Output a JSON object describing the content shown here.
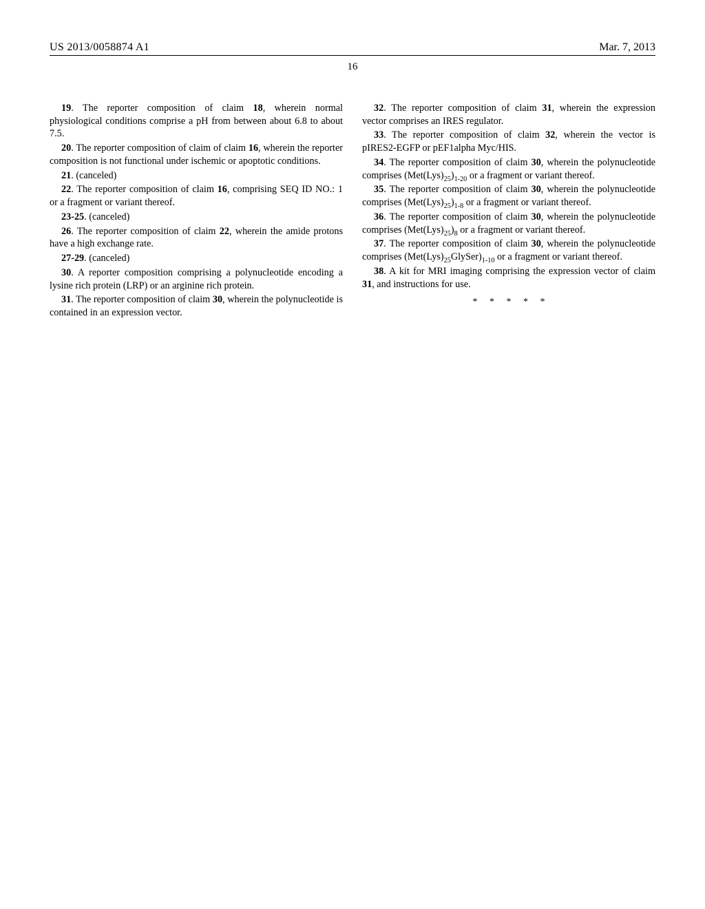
{
  "header": {
    "publication_number": "US 2013/0058874 A1",
    "publication_date": "Mar. 7, 2013",
    "page_number": "16"
  },
  "claims": {
    "c19": {
      "number": "19",
      "ref": "18",
      "text_a": ". The reporter composition of claim ",
      "text_b": ", wherein normal physiological conditions comprise a pH from between about 6.8 to about 7.5."
    },
    "c20": {
      "number": "20",
      "ref": "16",
      "text_a": ". The reporter composition of claim of claim ",
      "text_b": ", wherein the reporter composition is not functional under ischemic or apoptotic conditions."
    },
    "c21": {
      "number": "21",
      "text": ". (canceled)"
    },
    "c22": {
      "number": "22",
      "ref": "16",
      "text_a": ". The reporter composition of claim ",
      "text_b": ", comprising SEQ ID NO.: 1 or a fragment or variant thereof."
    },
    "c23_25": {
      "number": "23-25",
      "text": ". (canceled)"
    },
    "c26": {
      "number": "26",
      "ref": "22",
      "text_a": ". The reporter composition of claim ",
      "text_b": ", wherein the amide protons have a high exchange rate."
    },
    "c27_29": {
      "number": "27-29",
      "text": ". (canceled)"
    },
    "c30": {
      "number": "30",
      "text": ". A reporter composition comprising a polynucleotide encoding a lysine rich protein (LRP) or an arginine rich protein."
    },
    "c31": {
      "number": "31",
      "ref": "30",
      "text_a": ". The reporter composition of claim ",
      "text_b": ", wherein the polynucleotide is contained in an expression vector."
    },
    "c32": {
      "number": "32",
      "ref": "31",
      "text_a": ". The reporter composition of claim ",
      "text_b": ", wherein the expression vector comprises an IRES regulator."
    },
    "c33": {
      "number": "33",
      "ref": "32",
      "text_a": ". The reporter composition of claim ",
      "text_b": ", wherein the vector is pIRES2-EGFP or pEF1alpha Myc/HIS."
    },
    "c34": {
      "number": "34",
      "ref": "30",
      "pre": ". The reporter composition of claim ",
      "mid": ", wherein the polynucleotide comprises (Met(Lys)",
      "s1": "25",
      "mid2": ")",
      "s2": "1-20",
      "post": " or a fragment or variant thereof."
    },
    "c35": {
      "number": "35",
      "ref": "30",
      "pre": ". The reporter composition of claim ",
      "mid": ", wherein the polynucleotide comprises (Met(Lys)",
      "s1": "25",
      "mid2": ")",
      "s2": "1-8",
      "post": " or a fragment or variant thereof."
    },
    "c36": {
      "number": "36",
      "ref": "30",
      "pre": ". The reporter composition of claim ",
      "mid": ", wherein the polynucleotide comprises (Met(Lys)",
      "s1": "25",
      "mid2": ")",
      "s2": "8",
      "post": " or a fragment or variant thereof."
    },
    "c37": {
      "number": "37",
      "ref": "30",
      "pre": ". The reporter composition of claim ",
      "mid": ", wherein the polynucleotide comprises (Met(Lys)",
      "s1": "25",
      "mid2": "GlySer)",
      "s2": "1-10",
      "post": " or a fragment or variant thereof."
    },
    "c38": {
      "number": "38",
      "ref": "31",
      "text_a": ". A kit for MRI imaging comprising the expression vector of claim ",
      "text_b": ", and instructions for use."
    }
  },
  "stars": "*   *   *   *   *"
}
